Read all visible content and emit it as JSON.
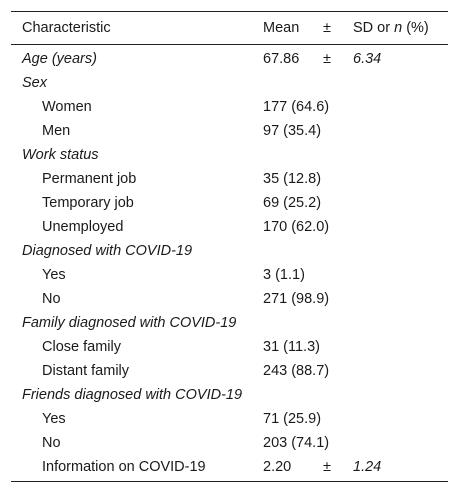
{
  "header": {
    "characteristic": "Characteristic",
    "mean": "Mean",
    "pm": "±",
    "sd_prefix": "SD or ",
    "sd_n": "n",
    "sd_suffix": " (%)"
  },
  "rows": [
    {
      "label": "Age (years)",
      "mean": "67.86",
      "pm": "±",
      "sd": "6.34"
    },
    {
      "label": "Sex"
    },
    {
      "label": "Women",
      "mean": "177 (64.6)"
    },
    {
      "label": "Men",
      "mean": "97 (35.4)"
    },
    {
      "label": "Work status"
    },
    {
      "label": "Permanent job",
      "mean": "35 (12.8)"
    },
    {
      "label": "Temporary job",
      "mean": "69 (25.2)"
    },
    {
      "label": "Unemployed",
      "mean": "170 (62.0)"
    },
    {
      "label": "Diagnosed with COVID-19"
    },
    {
      "label": "Yes",
      "mean": "3 (1.1)"
    },
    {
      "label": "No",
      "mean": "271 (98.9)"
    },
    {
      "label": "Family diagnosed with COVID-19"
    },
    {
      "label": "Close family",
      "mean": "31 (11.3)"
    },
    {
      "label": "Distant family",
      "mean": "243 (88.7)"
    },
    {
      "label": "Friends diagnosed with COVID-19"
    },
    {
      "label": "Yes",
      "mean": "71 (25.9)"
    },
    {
      "label": "No",
      "mean": "203 (74.1)"
    },
    {
      "label": "Information on COVID-19",
      "mean": "2.20",
      "pm": "±",
      "sd": "1.24"
    }
  ]
}
